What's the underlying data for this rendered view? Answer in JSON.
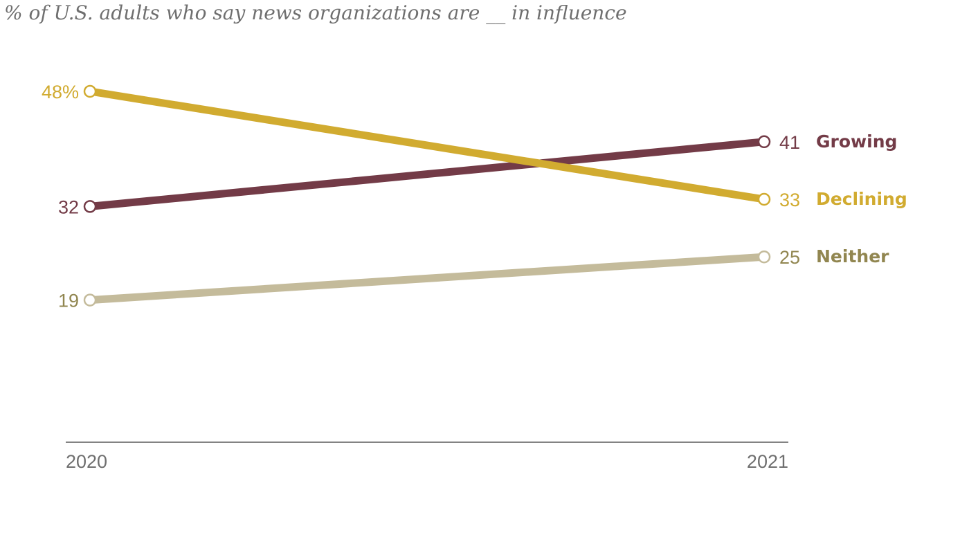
{
  "chart_data": {
    "type": "line",
    "subtitle": "% of U.S. adults who say news organizations are __ in influence",
    "x": [
      "2020",
      "2021"
    ],
    "ylim": [
      0,
      60
    ],
    "grid": false,
    "series": [
      {
        "name": "Growing",
        "values": [
          32,
          41
        ],
        "value_labels": [
          "32",
          "41"
        ],
        "color": "#733b47",
        "name_color": "#733b47"
      },
      {
        "name": "Declining",
        "values": [
          48,
          33
        ],
        "value_labels": [
          "48%",
          "33"
        ],
        "color": "#d1ab30",
        "name_color": "#d1ab30"
      },
      {
        "name": "Neither",
        "values": [
          19,
          25
        ],
        "value_labels": [
          "19",
          "25"
        ],
        "color": "#c4bb9b",
        "name_color": "#918650",
        "label_color": "#918650"
      }
    ]
  }
}
